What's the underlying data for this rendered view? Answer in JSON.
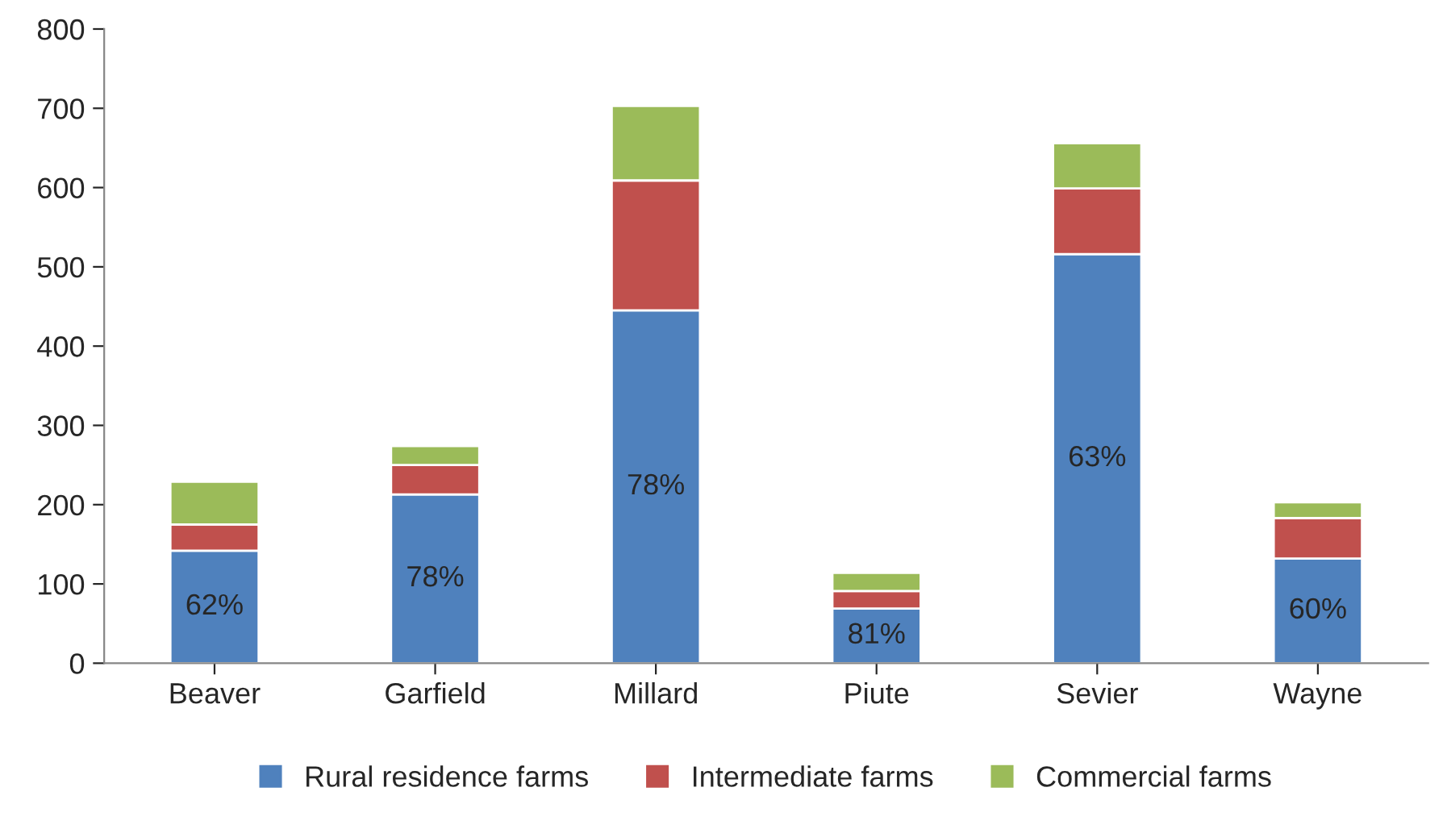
{
  "chart_data": {
    "type": "bar",
    "stacked": true,
    "categories": [
      "Beaver",
      "Garfield",
      "Millard",
      "Piute",
      "Sevier",
      "Wayne"
    ],
    "series": [
      {
        "name": "Rural residence farms",
        "color": "#4f81bd",
        "values": [
          142,
          213,
          445,
          69,
          516,
          132
        ]
      },
      {
        "name": "Intermediate farms",
        "color": "#c0504d",
        "values": [
          33,
          37,
          164,
          22,
          83,
          51
        ]
      },
      {
        "name": "Commercial farms",
        "color": "#9bbb59",
        "values": [
          54,
          24,
          94,
          23,
          57,
          20
        ]
      }
    ],
    "ylim": [
      0,
      800
    ],
    "yticks": [
      0,
      100,
      200,
      300,
      400,
      500,
      600,
      700,
      800
    ],
    "annotations": [
      "62%",
      "78%",
      "78%",
      "81%",
      "63%",
      "60%"
    ],
    "grid": false,
    "legend": "bottom"
  }
}
